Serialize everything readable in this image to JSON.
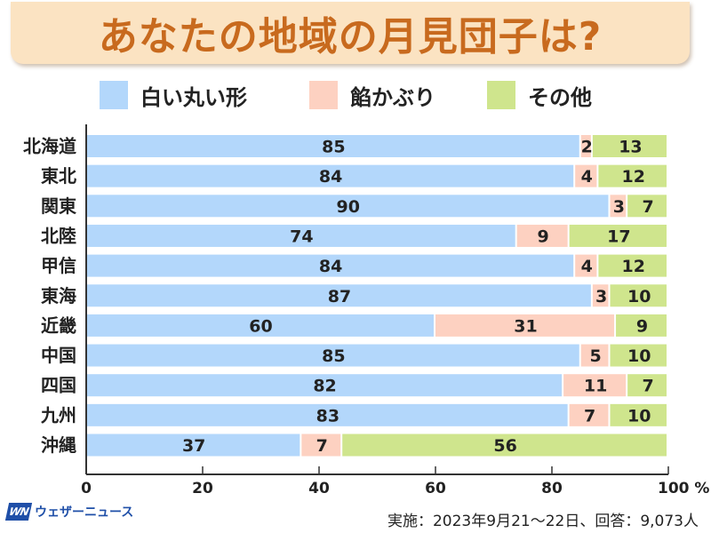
{
  "title": "あなたの地域の月見団子は?",
  "legend": [
    {
      "label": "白い丸い形",
      "color": "#b3d7fb"
    },
    {
      "label": "餡かぶり",
      "color": "#fdd1c1"
    },
    {
      "label": "その他",
      "color": "#cfe58d"
    }
  ],
  "footer": {
    "note": "実施：2023年9月21〜22日、回答：9,073人",
    "logo_mark": "WN",
    "logo_text": "ウェザーニュース"
  },
  "chart_data": {
    "type": "bar",
    "orientation": "horizontal",
    "stacked": true,
    "title": "あなたの地域の月見団子は?",
    "xlabel": "",
    "ylabel": "",
    "x_unit": "%",
    "xlim": [
      0,
      100
    ],
    "x_ticks": [
      0,
      20,
      40,
      60,
      80,
      100
    ],
    "x_tick_labels": [
      "0",
      "20",
      "40",
      "60",
      "80",
      "100 %"
    ],
    "grid": false,
    "legend_position": "top",
    "categories": [
      "北海道",
      "東北",
      "関東",
      "北陸",
      "甲信",
      "東海",
      "近畿",
      "中国",
      "四国",
      "九州",
      "沖縄"
    ],
    "series": [
      {
        "name": "白い丸い形",
        "color": "#b3d7fb",
        "values": [
          85,
          84,
          90,
          74,
          84,
          87,
          60,
          85,
          82,
          83,
          37
        ]
      },
      {
        "name": "餡かぶり",
        "color": "#fdd1c1",
        "values": [
          2,
          4,
          3,
          9,
          4,
          3,
          31,
          5,
          11,
          7,
          7
        ]
      },
      {
        "name": "その他",
        "color": "#cfe58d",
        "values": [
          13,
          12,
          7,
          17,
          12,
          10,
          9,
          10,
          7,
          10,
          56
        ]
      }
    ]
  }
}
